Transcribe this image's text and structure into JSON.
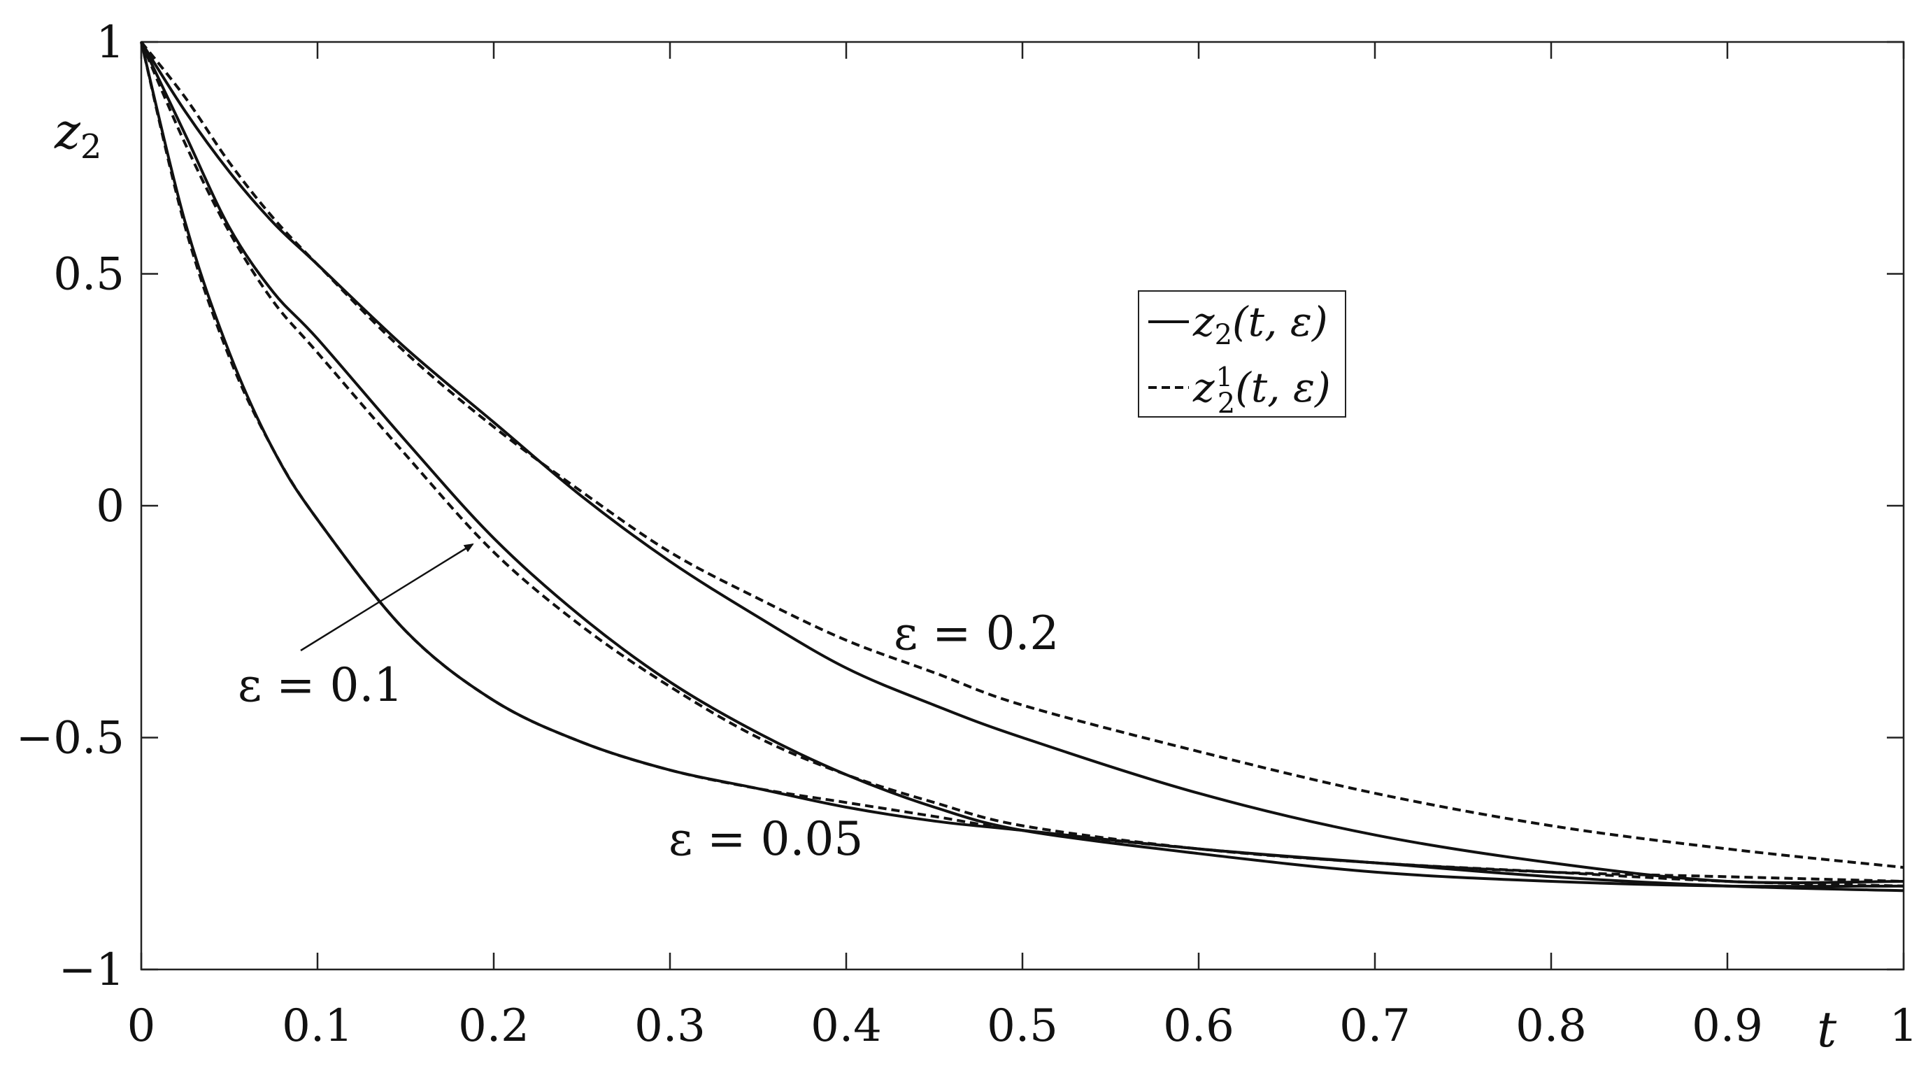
{
  "chart_data": {
    "type": "line",
    "xlabel": "t",
    "ylabel": "z",
    "ylabel_sub": "2",
    "xlim": [
      0,
      1
    ],
    "ylim": [
      -1,
      1
    ],
    "x_ticks": [
      "0",
      "0.1",
      "0.2",
      "0.3",
      "0.4",
      "0.5",
      "0.6",
      "0.7",
      "0.8",
      "0.9",
      "1"
    ],
    "y_ticks": [
      "1",
      "0.5",
      "0",
      "−0.5",
      "−1"
    ],
    "grid": false,
    "legend": {
      "placement": "upper-center-right",
      "entries": [
        {
          "base": "z",
          "sub": "2",
          "sup": "",
          "args": "(t, ε)",
          "style": "solid"
        },
        {
          "base": "z",
          "sub": "2",
          "sup": "1",
          "args": "(t, ε)",
          "style": "dashed"
        }
      ]
    },
    "annotations": [
      {
        "text": "ε = 0.2"
      },
      {
        "text": "ε = 0.1"
      },
      {
        "text": "ε = 0.05"
      }
    ],
    "x": [
      0,
      0.025,
      0.05,
      0.075,
      0.1,
      0.15,
      0.2,
      0.25,
      0.3,
      0.35,
      0.4,
      0.45,
      0.5,
      0.6,
      0.7,
      0.8,
      0.9,
      1.0
    ],
    "series": [
      {
        "epsilon": "0.2",
        "style": "solid",
        "values": [
          1.0,
          0.85,
          0.72,
          0.61,
          0.52,
          0.34,
          0.18,
          0.02,
          -0.12,
          -0.24,
          -0.35,
          -0.43,
          -0.5,
          -0.62,
          -0.71,
          -0.77,
          -0.81,
          -0.81
        ]
      },
      {
        "epsilon": "0.2",
        "style": "dashed",
        "values": [
          1.0,
          0.88,
          0.74,
          0.62,
          0.52,
          0.33,
          0.17,
          0.03,
          -0.1,
          -0.2,
          -0.29,
          -0.36,
          -0.43,
          -0.53,
          -0.62,
          -0.69,
          -0.74,
          -0.78
        ]
      },
      {
        "epsilon": "0.1",
        "style": "solid",
        "values": [
          1.0,
          0.8,
          0.6,
          0.46,
          0.36,
          0.14,
          -0.07,
          -0.24,
          -0.38,
          -0.49,
          -0.58,
          -0.65,
          -0.7,
          -0.75,
          -0.79,
          -0.81,
          -0.82,
          -0.82
        ]
      },
      {
        "epsilon": "0.1",
        "style": "dashed",
        "values": [
          1.0,
          0.78,
          0.59,
          0.44,
          0.33,
          0.11,
          -0.1,
          -0.26,
          -0.39,
          -0.5,
          -0.58,
          -0.64,
          -0.69,
          -0.74,
          -0.77,
          -0.79,
          -0.8,
          -0.81
        ]
      },
      {
        "epsilon": "0.05",
        "style": "solid",
        "values": [
          1.0,
          0.61,
          0.33,
          0.12,
          -0.03,
          -0.27,
          -0.42,
          -0.51,
          -0.57,
          -0.61,
          -0.65,
          -0.68,
          -0.7,
          -0.74,
          -0.77,
          -0.8,
          -0.82,
          -0.83
        ]
      },
      {
        "epsilon": "0.05",
        "style": "dashed",
        "values": [
          1.0,
          0.6,
          0.32,
          0.12,
          -0.03,
          -0.27,
          -0.42,
          -0.51,
          -0.57,
          -0.61,
          -0.64,
          -0.67,
          -0.7,
          -0.74,
          -0.77,
          -0.79,
          -0.81,
          -0.82
        ]
      }
    ]
  }
}
